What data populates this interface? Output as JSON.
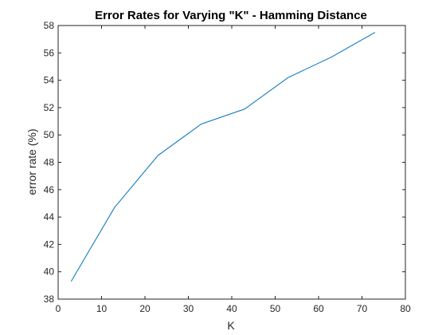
{
  "chart_data": {
    "type": "line",
    "title": "Error Rates for Varying \"K\" - Hamming Distance",
    "xlabel": "K",
    "ylabel": "error rate  (%)",
    "xlim": [
      0,
      80
    ],
    "ylim": [
      38,
      58
    ],
    "xticks": [
      0,
      10,
      20,
      30,
      40,
      50,
      60,
      70,
      80
    ],
    "yticks": [
      38,
      40,
      42,
      44,
      46,
      48,
      50,
      52,
      54,
      56,
      58
    ],
    "grid": false,
    "series": [
      {
        "x": [
          3,
          13,
          23,
          33,
          43,
          53,
          63,
          73
        ],
        "values": [
          39.3,
          44.7,
          48.5,
          50.8,
          51.9,
          54.2,
          55.7,
          57.5
        ],
        "color": "#0072BD"
      }
    ]
  }
}
